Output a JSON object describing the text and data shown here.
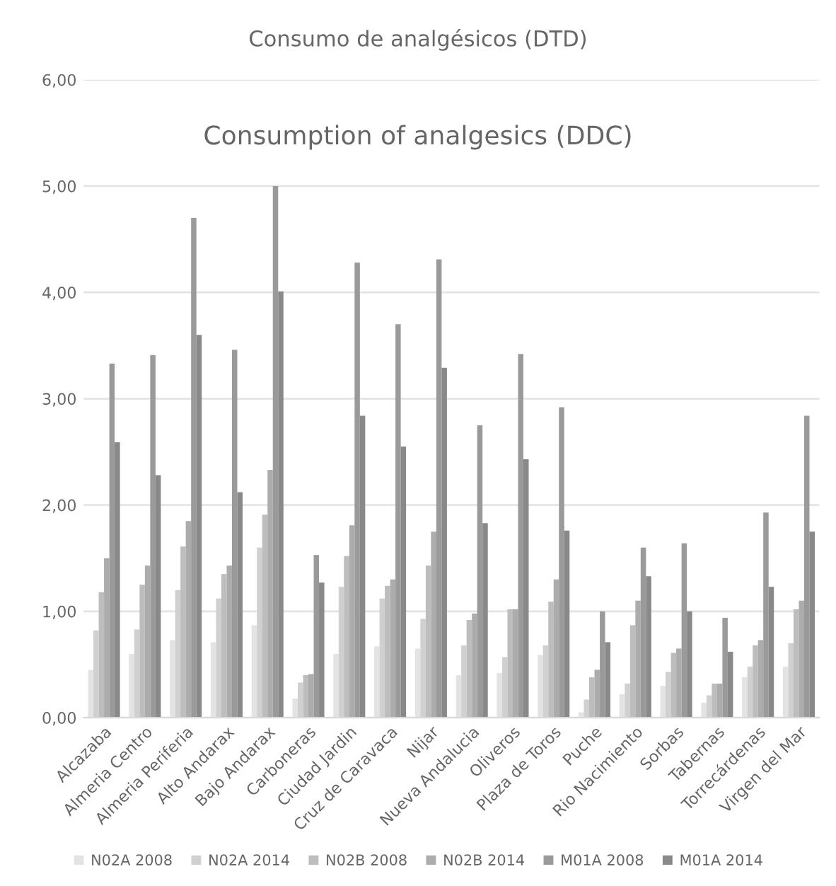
{
  "chart_data": {
    "type": "bar",
    "title": "Consumo de analgésicos (DTD)",
    "annotations": [
      "Consumption of analgesics (DDC)"
    ],
    "categories": [
      "Alcazaba",
      "Almeria Centro",
      "Almeria Periferia",
      "Alto Andarax",
      "Bajo Andarax",
      "Carboneras",
      "Ciudad Jardin",
      "Cruz de Caravaca",
      "Nijar",
      "Nueva Andalucia",
      "Oliveros",
      "Plaza de Toros",
      "Puche",
      "Rio Nacimiento",
      "Sorbas",
      "Tabernas",
      "Torrecárdenas",
      "Virgen del Mar"
    ],
    "series": [
      {
        "name": "N02A 2008",
        "color": "#e3e3e3",
        "values": [
          0.45,
          0.6,
          0.73,
          0.71,
          0.87,
          0.18,
          0.6,
          0.67,
          0.65,
          0.4,
          0.42,
          0.59,
          0.05,
          0.22,
          0.3,
          0.14,
          0.38,
          0.48
        ]
      },
      {
        "name": "N02A 2014",
        "color": "#d0d0d0",
        "values": [
          0.82,
          0.83,
          1.2,
          1.12,
          1.6,
          0.33,
          1.23,
          1.12,
          0.93,
          0.68,
          0.57,
          0.68,
          0.17,
          0.32,
          0.43,
          0.21,
          0.48,
          0.7
        ]
      },
      {
        "name": "N02B 2008",
        "color": "#bdbdbd",
        "values": [
          1.18,
          1.25,
          1.61,
          1.35,
          1.91,
          0.4,
          1.52,
          1.24,
          1.43,
          0.92,
          1.02,
          1.09,
          0.38,
          0.87,
          0.61,
          0.32,
          0.68,
          1.02
        ]
      },
      {
        "name": "N02B 2014",
        "color": "#acacac",
        "values": [
          1.5,
          1.43,
          1.85,
          1.43,
          2.33,
          0.41,
          1.81,
          1.3,
          1.75,
          0.98,
          1.02,
          1.3,
          0.45,
          1.1,
          0.65,
          0.32,
          0.73,
          1.1
        ]
      },
      {
        "name": "M01A 2008",
        "color": "#9a9a9a",
        "values": [
          3.33,
          3.41,
          4.7,
          3.46,
          5.0,
          1.53,
          4.28,
          3.7,
          4.31,
          2.75,
          3.42,
          2.92,
          1.0,
          1.6,
          1.64,
          0.94,
          1.93,
          2.84
        ]
      },
      {
        "name": "M01A 2014",
        "color": "#898989",
        "values": [
          2.59,
          2.28,
          3.6,
          2.12,
          4.01,
          1.27,
          2.84,
          2.55,
          3.29,
          1.83,
          2.43,
          1.76,
          0.71,
          1.33,
          1.0,
          0.62,
          1.23,
          1.75
        ]
      }
    ],
    "ylim": [
      0,
      6
    ],
    "yticks": [
      {
        "value": 0,
        "label": "0,00"
      },
      {
        "value": 1,
        "label": "1,00"
      },
      {
        "value": 2,
        "label": "2,00"
      },
      {
        "value": 3,
        "label": "3,00"
      },
      {
        "value": 4,
        "label": "4,00"
      },
      {
        "value": 5,
        "label": "5,00"
      },
      {
        "value": 6,
        "label": "6,00"
      }
    ],
    "grid": "y",
    "legend": "bottom"
  }
}
